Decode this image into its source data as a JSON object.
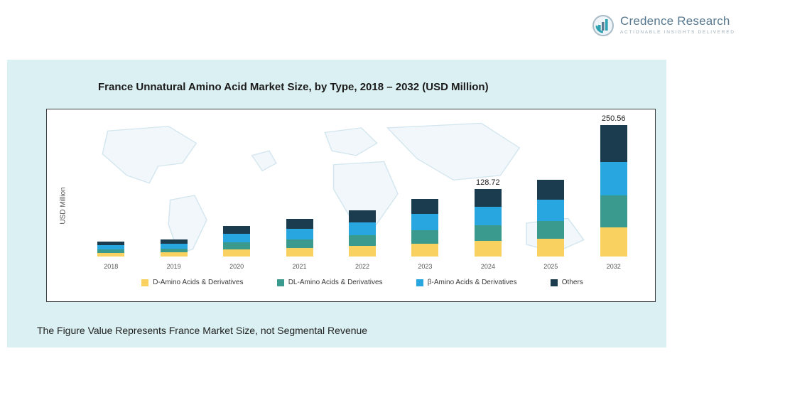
{
  "brand": {
    "name": "Credence Research",
    "tagline": "Actionable Insights Delivered"
  },
  "chart": {
    "title": "France Unnatural Amino Acid Market Size, by Type, 2018 – 2032 (USD Million)",
    "ylabel": "USD Million",
    "footnote": "The Figure Value Represents France Market Size, not Segmental Revenue"
  },
  "chart_data": {
    "type": "bar",
    "stacked": true,
    "title": "France Unnatural Amino Acid Market Size, by Type, 2018 – 2032 (USD Million)",
    "xlabel": "",
    "ylabel": "USD Million",
    "ylim": [
      0,
      260
    ],
    "grid": false,
    "legend_position": "bottom",
    "categories": [
      "2018",
      "2019",
      "2020",
      "2021",
      "2022",
      "2023",
      "2024",
      "2025",
      "2032"
    ],
    "series": [
      {
        "name": "D-Amino Acids & Derivatives",
        "color": "#f9d160",
        "values": [
          6.8,
          7.6,
          13.3,
          16.5,
          20.2,
          25.0,
          29.62,
          33.6,
          55.6
        ]
      },
      {
        "name": "DL-Amino Acids & Derivatives",
        "color": "#3a9a8e",
        "values": [
          6.7,
          7.6,
          13.3,
          16.5,
          20.2,
          25.0,
          29.6,
          33.6,
          60.0
        ]
      },
      {
        "name": "β-Amino Acids & Derivatives",
        "color": "#27a6e0",
        "values": [
          8.0,
          9.2,
          16.2,
          20.4,
          24.6,
          30.5,
          36.0,
          41.0,
          64.0
        ]
      },
      {
        "name": "Others",
        "color": "#1b3c4e",
        "values": [
          7.5,
          8.6,
          15.2,
          18.6,
          23.0,
          28.5,
          33.5,
          37.8,
          70.96
        ]
      }
    ],
    "totals": [
      29.0,
      33.0,
      58.0,
      72.0,
      88.0,
      109.0,
      128.72,
      146.0,
      250.56
    ],
    "value_labels": {
      "2024": "128.72",
      "2032": "250.56"
    }
  }
}
